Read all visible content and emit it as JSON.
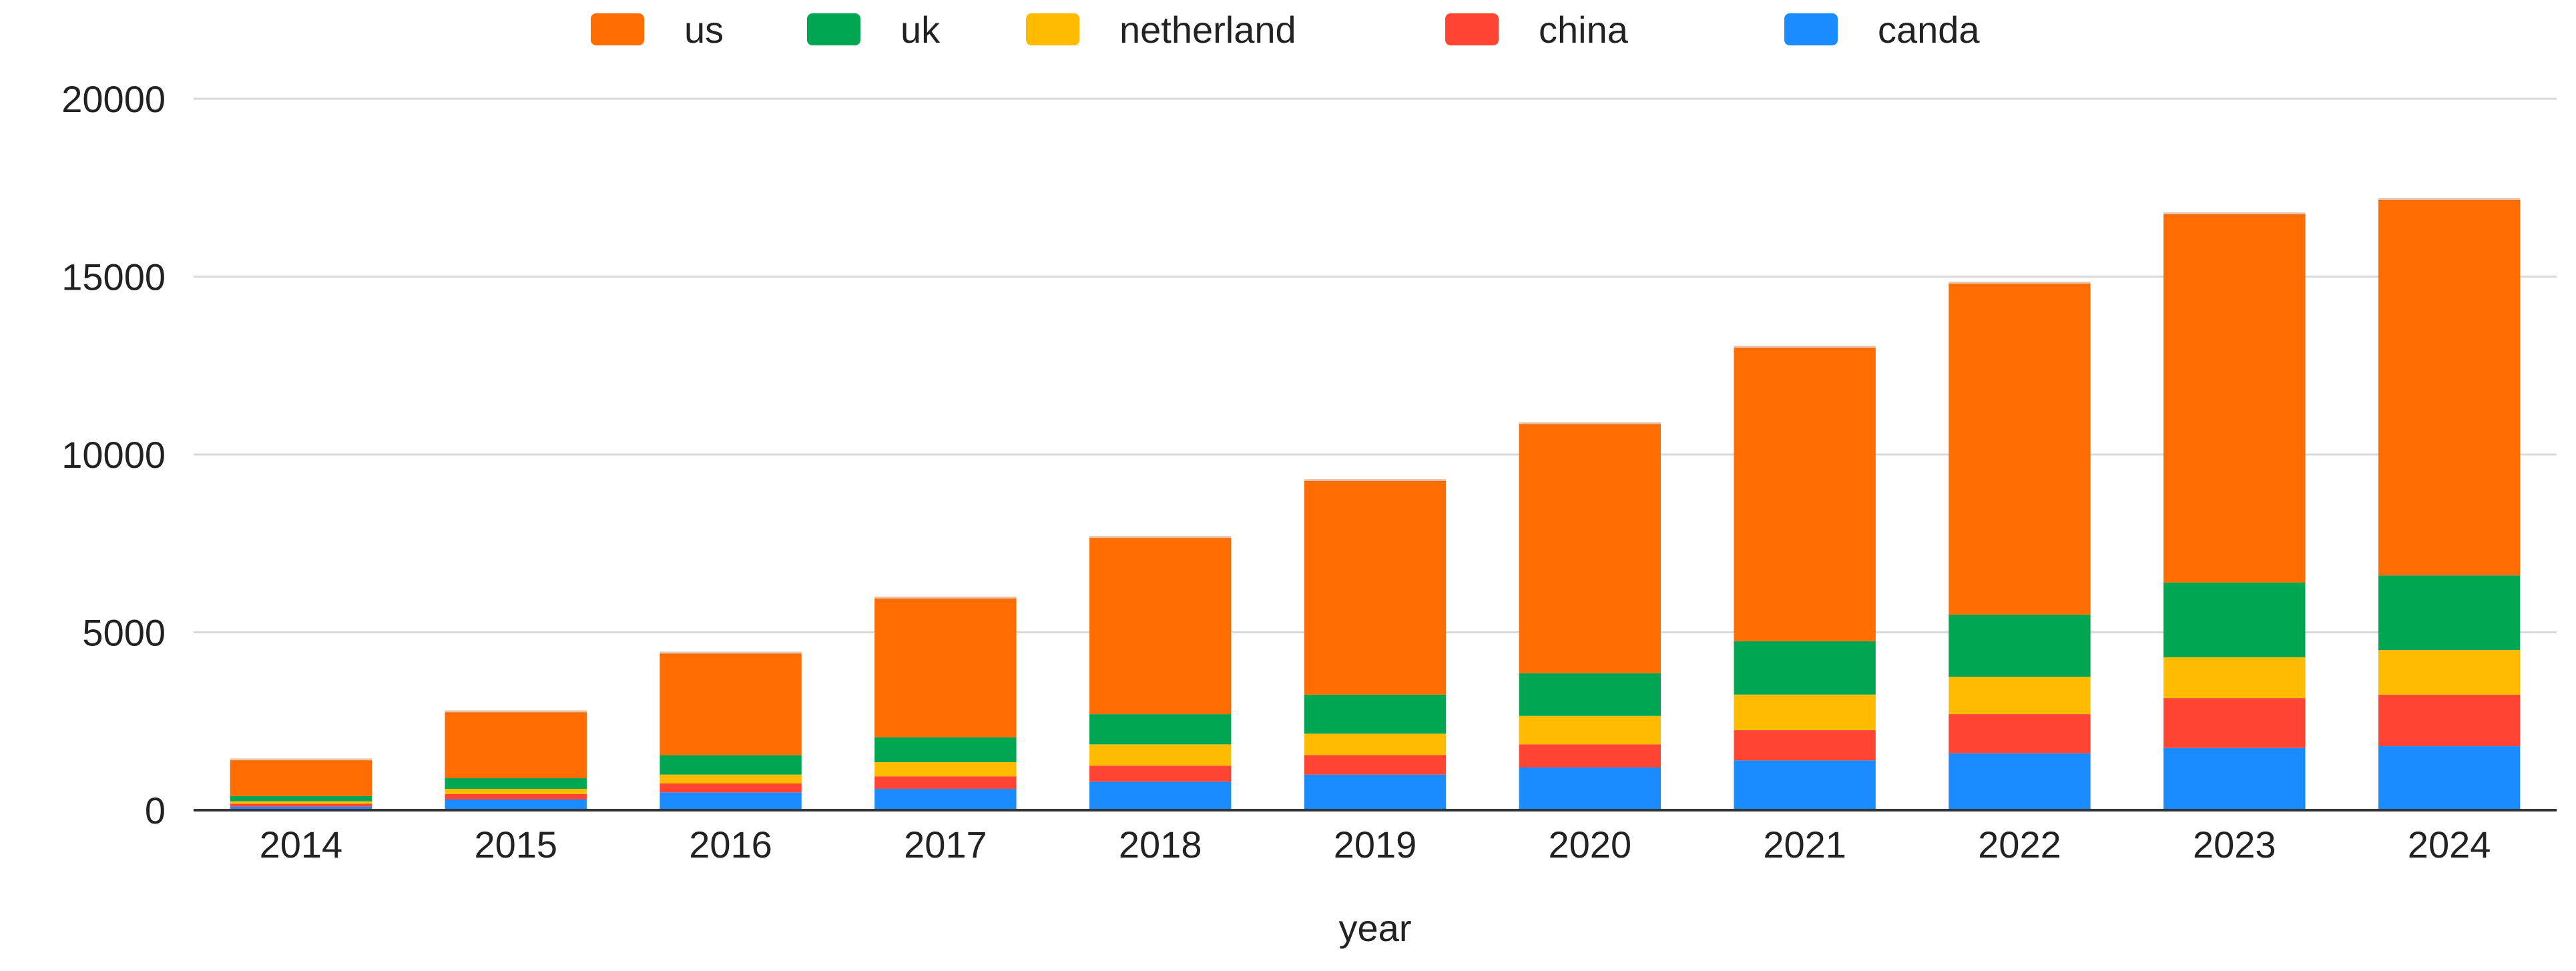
{
  "chart_data": {
    "type": "bar",
    "stacked": true,
    "title": "",
    "xlabel": "year",
    "ylabel": "",
    "ylim": [
      0,
      20000
    ],
    "yticks": [
      "0",
      "5000",
      "10000",
      "15000",
      "20000"
    ],
    "grid": true,
    "legend_position": "top",
    "legend_order": [
      "us",
      "uk",
      "netherland",
      "china",
      "canda"
    ],
    "categories": [
      "2014",
      "2015",
      "2016",
      "2017",
      "2018",
      "2019",
      "2020",
      "2021",
      "2022",
      "2023",
      "2024"
    ],
    "series": [
      {
        "name": "canda",
        "color": "#1a8cff",
        "values": [
          100,
          300,
          500,
          600,
          800,
          1000,
          1200,
          1400,
          1600,
          1750,
          1800
        ]
      },
      {
        "name": "china",
        "color": "#ff4433",
        "values": [
          80,
          150,
          250,
          350,
          450,
          550,
          650,
          850,
          1100,
          1400,
          1450
        ]
      },
      {
        "name": "netherland",
        "color": "#ffbb00",
        "values": [
          70,
          150,
          250,
          400,
          600,
          600,
          800,
          1000,
          1050,
          1150,
          1250
        ]
      },
      {
        "name": "uk",
        "color": "#00a651",
        "values": [
          150,
          300,
          550,
          700,
          850,
          1100,
          1200,
          1500,
          1750,
          2100,
          2100
        ]
      },
      {
        "name": "us",
        "color": "#ff6d00",
        "values": [
          1000,
          1850,
          2850,
          3900,
          4950,
          6000,
          7000,
          8250,
          9300,
          10350,
          10550
        ]
      }
    ]
  }
}
